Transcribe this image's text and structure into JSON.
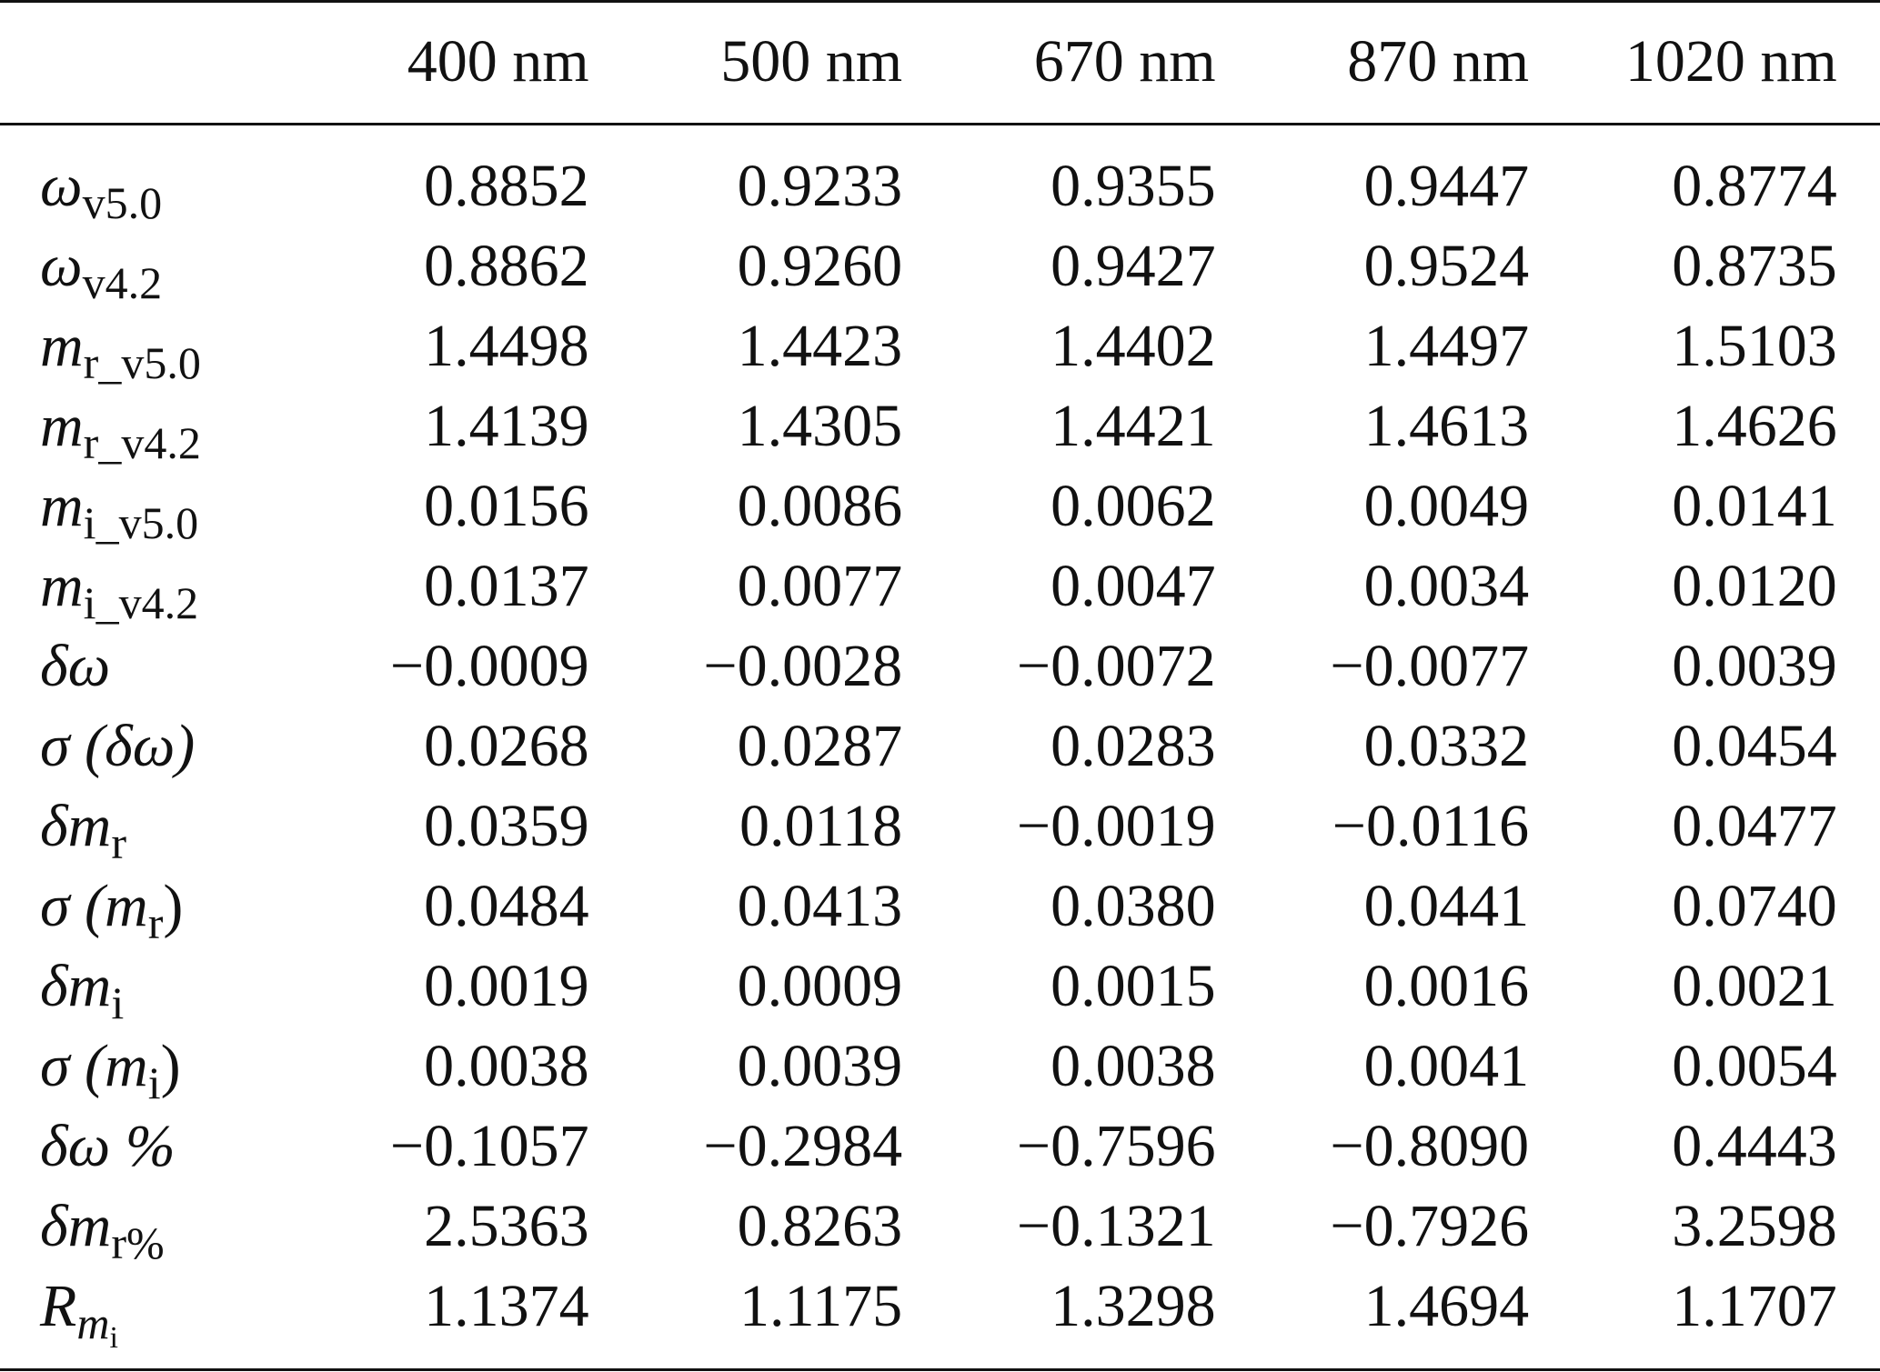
{
  "table": {
    "columns": [
      "",
      "400 nm",
      "500 nm",
      "670 nm",
      "870 nm",
      "1020 nm"
    ],
    "rows": [
      {
        "label_base": "ω",
        "label_sub": "v5.0",
        "label_tail": "",
        "label_sub2": "",
        "values": [
          "0.8852",
          "0.9233",
          "0.9355",
          "0.9447",
          "0.8774"
        ]
      },
      {
        "label_base": "ω",
        "label_sub": "v4.2",
        "label_tail": "",
        "label_sub2": "",
        "values": [
          "0.8862",
          "0.9260",
          "0.9427",
          "0.9524",
          "0.8735"
        ]
      },
      {
        "label_base": "m",
        "label_sub": "r_v5.0",
        "label_tail": "",
        "label_sub2": "",
        "values": [
          "1.4498",
          "1.4423",
          "1.4402",
          "1.4497",
          "1.5103"
        ]
      },
      {
        "label_base": "m",
        "label_sub": "r_v4.2",
        "label_tail": "",
        "label_sub2": "",
        "values": [
          "1.4139",
          "1.4305",
          "1.4421",
          "1.4613",
          "1.4626"
        ]
      },
      {
        "label_base": "m",
        "label_sub": "i_v5.0",
        "label_tail": "",
        "label_sub2": "",
        "values": [
          "0.0156",
          "0.0086",
          "0.0062",
          "0.0049",
          "0.0141"
        ]
      },
      {
        "label_base": "m",
        "label_sub": "i_v4.2",
        "label_tail": "",
        "label_sub2": "",
        "values": [
          "0.0137",
          "0.0077",
          "0.0047",
          "0.0034",
          "0.0120"
        ]
      },
      {
        "label_base": "δω",
        "label_sub": "",
        "label_tail": "",
        "label_sub2": "",
        "values": [
          "−0.0009",
          "−0.0028",
          "−0.0072",
          "−0.0077",
          "0.0039"
        ]
      },
      {
        "label_base": "σ (δω)",
        "label_sub": "",
        "label_tail": "",
        "label_sub2": "",
        "values": [
          "0.0268",
          "0.0287",
          "0.0283",
          "0.0332",
          "0.0454"
        ]
      },
      {
        "label_base": "δm",
        "label_sub": "r",
        "label_tail": "",
        "label_sub2": "",
        "values": [
          "0.0359",
          "0.0118",
          "−0.0019",
          "−0.0116",
          "0.0477"
        ]
      },
      {
        "label_base": "σ (m",
        "label_sub": "r",
        "label_tail": ")",
        "label_sub2": "",
        "values": [
          "0.0484",
          "0.0413",
          "0.0380",
          "0.0441",
          "0.0740"
        ]
      },
      {
        "label_base": "δm",
        "label_sub": "i",
        "label_tail": "",
        "label_sub2": "",
        "values": [
          "0.0019",
          "0.0009",
          "0.0015",
          "0.0016",
          "0.0021"
        ]
      },
      {
        "label_base": "σ (m",
        "label_sub": "i",
        "label_tail": ")",
        "label_sub2": "",
        "values": [
          "0.0038",
          "0.0039",
          "0.0038",
          "0.0041",
          "0.0054"
        ]
      },
      {
        "label_base": "δω %",
        "label_sub": "",
        "label_tail": "",
        "label_sub2": "",
        "values": [
          "−0.1057",
          "−0.2984",
          "−0.7596",
          "−0.8090",
          "0.4443"
        ]
      },
      {
        "label_base": "δm",
        "label_sub": "r%",
        "label_tail": "",
        "label_sub2": "",
        "values": [
          "2.5363",
          "0.8263",
          "−0.1321",
          "−0.7926",
          "3.2598"
        ]
      },
      {
        "label_base": "R",
        "label_sub": "m",
        "label_tail": "",
        "label_sub2": "i",
        "values": [
          "1.1374",
          "1.1175",
          "1.3298",
          "1.4694",
          "1.1707"
        ]
      }
    ]
  }
}
